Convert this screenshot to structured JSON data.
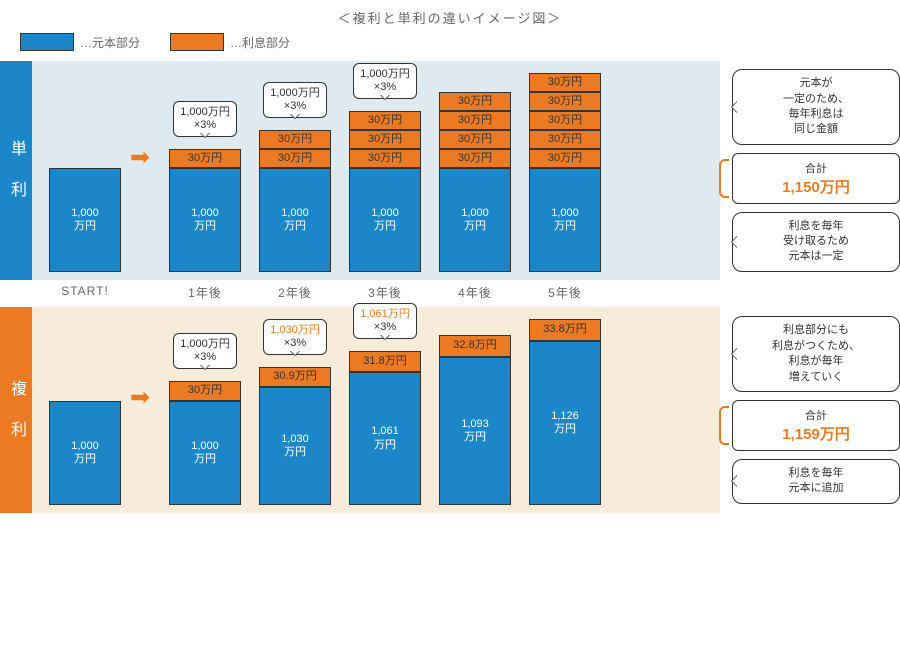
{
  "title": "＜複利と単利の違いイメージ図＞",
  "legend": {
    "principal": {
      "label": "…元本部分",
      "color": "#1b87c9"
    },
    "interest": {
      "label": "…利息部分",
      "color": "#ec7a22"
    }
  },
  "colors": {
    "blue": "#1b87c9",
    "orange": "#ec7a22",
    "panel_simple": "#dfeaf0",
    "panel_compound": "#f7ebd9",
    "border": "#333333"
  },
  "xaxis": [
    "START!",
    "1年後",
    "2年後",
    "3年後",
    "4年後",
    "5年後"
  ],
  "simple": {
    "tab": "単 利",
    "principal_label": "1,000\n万円",
    "principal_h": 104,
    "int_label": "30万円",
    "int_h": 19,
    "balloon": "1,000万円\n×3%",
    "interest_counts": [
      0,
      1,
      2,
      3,
      4,
      5
    ],
    "balloon_cols": [
      1,
      2,
      3
    ],
    "note_top": "元本が\n一定のため、\n毎年利息は\n同じ金額",
    "note_bottom": "利息を毎年\n受け取るため\n元本は一定",
    "total_label": "合計",
    "total_value": "1,150万円"
  },
  "compound": {
    "tab": "複 利",
    "bars": [
      {
        "principal": "1,000\n万円",
        "ph": 104,
        "int": null,
        "ih": 0,
        "balloon": null
      },
      {
        "principal": "1,000\n万円",
        "ph": 104,
        "int": "30万円",
        "ih": 20,
        "balloon": "1,000万円\n×3%",
        "balloon_color": "#333"
      },
      {
        "principal": "1,030\n万円",
        "ph": 118,
        "int": "30.9万円",
        "ih": 20,
        "balloon": "1,030万円\n×3%",
        "balloon_color": "#ec7a22"
      },
      {
        "principal": "1,061\n万円",
        "ph": 133,
        "int": "31.8万円",
        "ih": 21,
        "balloon": "1,061万円\n×3%",
        "balloon_color": "#ec7a22"
      },
      {
        "principal": "1,093\n万円",
        "ph": 148,
        "int": "32.8万円",
        "ih": 22,
        "balloon": null
      },
      {
        "principal": "1,126\n万円",
        "ph": 164,
        "int": "33.8万円",
        "ih": 22,
        "balloon": null
      }
    ],
    "note_top": "利息部分にも\n利息がつくため、\n利息が毎年\n増えていく",
    "note_bottom": "利息を毎年\n元本に追加",
    "total_label": "合計",
    "total_value": "1,159万円"
  }
}
